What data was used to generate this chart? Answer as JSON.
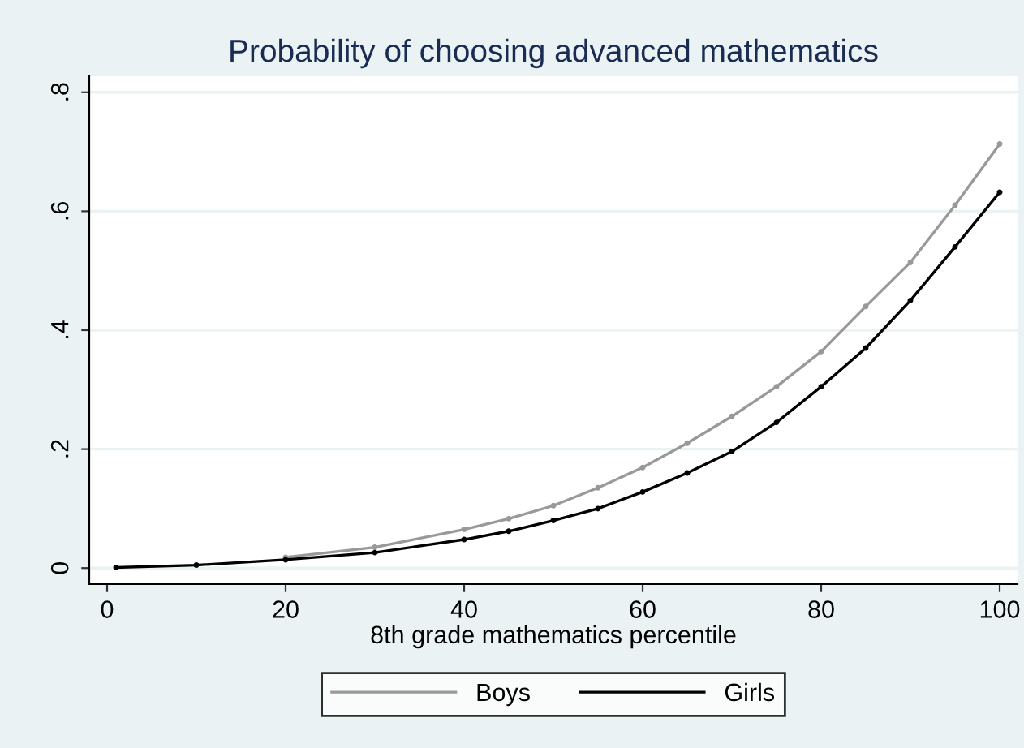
{
  "chart_data": {
    "type": "line",
    "title": "Probability of choosing advanced mathematics",
    "xlabel": "8th grade mathematics percentile",
    "x": [
      1,
      10,
      20,
      30,
      40,
      45,
      50,
      55,
      60,
      65,
      70,
      75,
      80,
      85,
      90,
      95,
      100
    ],
    "series": [
      {
        "name": "Boys",
        "color": "#999999",
        "values": [
          null,
          null,
          0.018,
          0.035,
          0.065,
          0.083,
          0.105,
          0.135,
          0.169,
          0.21,
          0.255,
          0.305,
          0.364,
          0.44,
          0.514,
          0.61,
          0.713
        ]
      },
      {
        "name": "Girls",
        "color": "#000000",
        "values": [
          0.001,
          0.005,
          0.014,
          0.026,
          0.048,
          0.062,
          0.08,
          0.1,
          0.128,
          0.16,
          0.196,
          0.245,
          0.305,
          0.37,
          0.45,
          0.54,
          0.632
        ]
      }
    ],
    "xlim": [
      -2,
      102
    ],
    "xticks": [
      0,
      20,
      40,
      60,
      80,
      100
    ],
    "ylim": [
      -0.027,
      0.827
    ],
    "yticks": [
      {
        "value": 0,
        "label": "0"
      },
      {
        "value": 0.2,
        "label": ".2"
      },
      {
        "value": 0.4,
        "label": ".4"
      },
      {
        "value": 0.6,
        "label": ".6"
      },
      {
        "value": 0.8,
        "label": ".8"
      }
    ],
    "grid": "y",
    "legend": "bottom",
    "marker": "circle",
    "line_style": "solid"
  }
}
